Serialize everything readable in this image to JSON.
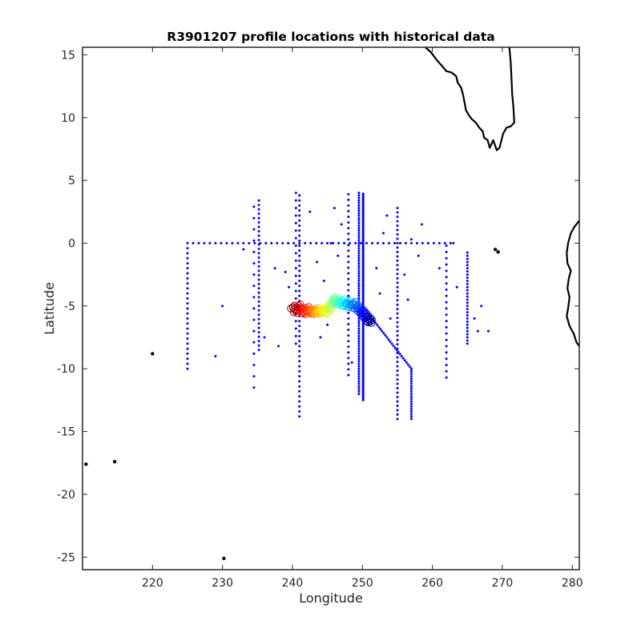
{
  "chart_data": {
    "type": "scatter",
    "title": "R3901207 profile locations with historical data",
    "xlabel": "Longitude",
    "ylabel": "Latitude",
    "xlim": [
      210,
      281
    ],
    "ylim": [
      -26,
      15.6
    ],
    "xticks": [
      220,
      230,
      240,
      250,
      260,
      270,
      280
    ],
    "yticks": [
      -25,
      -20,
      -15,
      -10,
      -5,
      0,
      5,
      10,
      15
    ],
    "grid": false,
    "legend": "none",
    "colors": {
      "historical": "#0000ff",
      "coast": "#000000",
      "profile_colormap": [
        "#8b0000",
        "#ff0000",
        "#ff8000",
        "#ffff00",
        "#80ff80",
        "#00ffff",
        "#0080ff",
        "#0000ff",
        "#00008b"
      ]
    },
    "profile_track": {
      "marker": "circle-open",
      "colormap": "jet",
      "lon": [
        240.1,
        240.5,
        240.9,
        241.3,
        241.7,
        242.1,
        242.5,
        242.9,
        243.3,
        243.7,
        244.1,
        244.5,
        244.9,
        245.3,
        245.7,
        246.0,
        246.4,
        246.8,
        247.2,
        247.6,
        248.0,
        248.4,
        248.8,
        249.2,
        249.6,
        250.0,
        250.3,
        250.6,
        250.9,
        251.1
      ],
      "lat": [
        -5.1,
        -5.4,
        -5.0,
        -5.3,
        -5.5,
        -5.2,
        -5.4,
        -5.5,
        -5.3,
        -5.5,
        -5.4,
        -5.2,
        -5.5,
        -5.1,
        -4.7,
        -4.4,
        -4.6,
        -4.8,
        -4.6,
        -4.9,
        -4.7,
        -5.0,
        -4.8,
        -5.1,
        -5.3,
        -5.5,
        -5.7,
        -5.9,
        -6.1,
        -6.2
      ]
    },
    "historical_lines": [
      {
        "lon": 225.0,
        "lat_from": -10.0,
        "lat_to": -0.2,
        "step": 0.4
      },
      {
        "lon": 234.5,
        "lat_from": -11.5,
        "lat_to": 3.4,
        "step": 0.9
      },
      {
        "lon": 235.2,
        "lat_from": -8.5,
        "lat_to": 3.4,
        "step": 0.35
      },
      {
        "lon": 240.5,
        "lat_from": -8.0,
        "lat_to": 4.1,
        "step": 0.6
      },
      {
        "lon": 241.0,
        "lat_from": -13.8,
        "lat_to": 3.9,
        "step": 0.4
      },
      {
        "lon": 248.0,
        "lat_from": -10.5,
        "lat_to": 4.2,
        "step": 0.45
      },
      {
        "lon": 249.5,
        "lat_from": -12.0,
        "lat_to": 4.0,
        "step": 0.2
      },
      {
        "lon": 250.1,
        "lat_from": -12.5,
        "lat_to": 4.0,
        "step": 0.12
      },
      {
        "lon": 255.0,
        "lat_from": -14.0,
        "lat_to": 3.0,
        "step": 0.35
      },
      {
        "lon": 257.0,
        "lat_from": -14.0,
        "lat_to": -10.0,
        "step": 0.2
      },
      {
        "lon": 262.0,
        "lat_from": -10.7,
        "lat_to": 0.0,
        "step": 0.5
      },
      {
        "lon": 265.0,
        "lat_from": -8.0,
        "lat_to": -0.6,
        "step": 0.25
      }
    ],
    "historical_diagonal": {
      "from": [
        250.0,
        -5.0
      ],
      "to": [
        257.0,
        -10.0
      ],
      "count": 30
    },
    "historical_equator": {
      "lat": 0.0,
      "lon_from": 225.0,
      "lon_to": 263.0,
      "step": 0.8
    },
    "historical_points": [
      [
        229.0,
        -9.0
      ],
      [
        230.0,
        -5.0
      ],
      [
        238.0,
        -8.2
      ],
      [
        237.5,
        -2.0
      ],
      [
        239.5,
        -3.5
      ],
      [
        244.5,
        -3.0
      ],
      [
        245.0,
        -6.5
      ],
      [
        244.0,
        -7.5
      ],
      [
        246.5,
        -1.0
      ],
      [
        252.0,
        -2.0
      ],
      [
        253.0,
        0.8
      ],
      [
        256.0,
        -2.5
      ],
      [
        257.0,
        0.3
      ],
      [
        258.0,
        -1.0
      ],
      [
        258.5,
        1.5
      ],
      [
        261.0,
        -2.0
      ],
      [
        263.0,
        0.0
      ],
      [
        263.5,
        -3.5
      ],
      [
        266.0,
        -6.0
      ],
      [
        266.5,
        -7.0
      ],
      [
        267.0,
        -5.0
      ],
      [
        268.0,
        -7.0
      ],
      [
        239.0,
        -2.3
      ],
      [
        236.0,
        -7.5
      ],
      [
        242.5,
        2.5
      ],
      [
        246.0,
        2.8
      ],
      [
        253.5,
        2.2
      ],
      [
        245.5,
        0.0
      ],
      [
        243.5,
        -1.5
      ],
      [
        252.5,
        -4.0
      ],
      [
        254.0,
        -6.0
      ],
      [
        256.5,
        -4.5
      ],
      [
        247.0,
        1.5
      ],
      [
        248.5,
        -9.5
      ],
      [
        233.0,
        -0.5
      ]
    ],
    "coastlines": [
      [
        [
          259.0,
          15.6
        ],
        [
          259.8,
          15.2
        ],
        [
          260.6,
          14.6
        ],
        [
          261.4,
          14.1
        ],
        [
          262.0,
          13.7
        ],
        [
          262.7,
          13.6
        ],
        [
          263.4,
          13.3
        ],
        [
          263.6,
          12.8
        ],
        [
          264.1,
          12.4
        ],
        [
          264.4,
          11.8
        ],
        [
          264.6,
          11.2
        ],
        [
          264.8,
          10.6
        ],
        [
          265.2,
          10.2
        ],
        [
          265.6,
          9.9
        ],
        [
          266.2,
          9.6
        ],
        [
          266.7,
          9.2
        ],
        [
          267.2,
          8.9
        ],
        [
          267.4,
          8.4
        ],
        [
          267.9,
          8.2
        ],
        [
          268.2,
          7.6
        ],
        [
          268.7,
          8.2
        ],
        [
          269.2,
          7.4
        ],
        [
          269.6,
          7.6
        ],
        [
          270.1,
          8.7
        ],
        [
          270.6,
          9.2
        ],
        [
          271.2,
          9.3
        ],
        [
          271.7,
          9.6
        ],
        [
          271.6,
          10.7
        ],
        [
          271.4,
          11.9
        ],
        [
          271.3,
          13.2
        ],
        [
          271.2,
          14.4
        ],
        [
          271.0,
          15.6
        ]
      ],
      [
        [
          281.0,
          1.8
        ],
        [
          280.3,
          1.3
        ],
        [
          279.8,
          0.8
        ],
        [
          279.4,
          0.0
        ],
        [
          279.2,
          -0.8
        ],
        [
          279.3,
          -1.6
        ],
        [
          279.8,
          -2.2
        ],
        [
          279.5,
          -2.8
        ],
        [
          279.3,
          -3.6
        ],
        [
          279.6,
          -4.3
        ],
        [
          279.4,
          -5.2
        ],
        [
          279.2,
          -5.8
        ],
        [
          279.6,
          -6.6
        ],
        [
          280.2,
          -7.2
        ],
        [
          280.6,
          -7.9
        ],
        [
          281.0,
          -8.2
        ]
      ]
    ],
    "islands": [
      [
        220.0,
        -8.8
      ],
      [
        210.5,
        -17.6
      ],
      [
        214.6,
        -17.4
      ],
      [
        230.2,
        -25.1
      ],
      [
        269.0,
        -0.5
      ],
      [
        269.4,
        -0.7
      ]
    ]
  }
}
